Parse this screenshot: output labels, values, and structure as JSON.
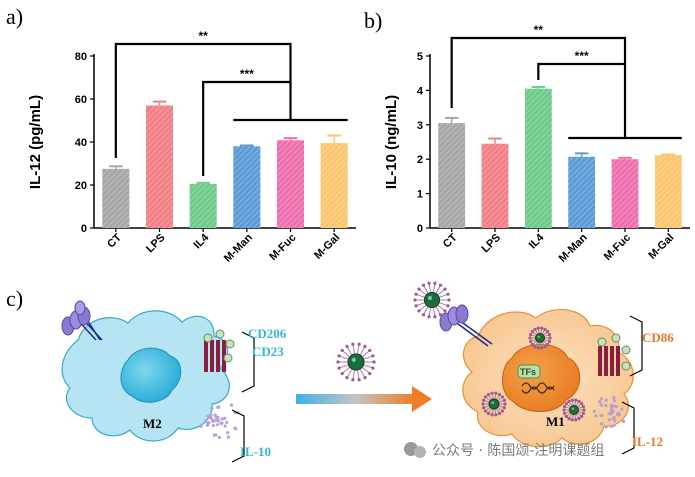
{
  "panels": {
    "a": "a)",
    "b": "b)",
    "c": "c)"
  },
  "chart_data": [
    {
      "type": "bar",
      "title": "",
      "xlabel": "",
      "ylabel": "IL-12 (pg/mL)",
      "ylim": [
        0,
        80
      ],
      "yticks": [
        0,
        20,
        40,
        60,
        80
      ],
      "categories": [
        "CT",
        "LPS",
        "IL4",
        "M-Man",
        "M-Fuc",
        "M-Gal"
      ],
      "values": [
        27.5,
        57,
        20.5,
        38,
        40.8,
        39.5
      ],
      "errors": [
        1.2,
        1.8,
        0.5,
        0.4,
        1,
        3.5
      ],
      "colors": [
        "#a6a6a8",
        "#f27f85",
        "#6ecb8a",
        "#5b9bd8",
        "#ee6fae",
        "#fcc66f"
      ],
      "significance": [
        {
          "label": "**",
          "from": "CT",
          "to": "M-Fuc"
        },
        {
          "label": "***",
          "from": "IL4",
          "to": "M-Fuc"
        }
      ]
    },
    {
      "type": "bar",
      "title": "",
      "xlabel": "",
      "ylabel": "IL-10 (ng/mL)",
      "ylim": [
        0,
        5
      ],
      "yticks": [
        0,
        1,
        2,
        3,
        4,
        5
      ],
      "categories": [
        "CT",
        "LPS",
        "IL4",
        "M-Man",
        "M-Fuc",
        "M-Gal"
      ],
      "values": [
        3.05,
        2.45,
        4.05,
        2.07,
        2.0,
        2.12
      ],
      "errors": [
        0.15,
        0.15,
        0.05,
        0.1,
        0.04,
        0.02
      ],
      "colors": [
        "#a6a6a8",
        "#f27f85",
        "#6ecb8a",
        "#5b9bd8",
        "#ee6fae",
        "#fcc66f"
      ],
      "significance": [
        {
          "label": "**",
          "from": "CT",
          "to": "M-Fuc"
        },
        {
          "label": "***",
          "from": "IL4",
          "to": "M-Fuc"
        }
      ]
    }
  ],
  "diagram": {
    "left_cell": "M2",
    "right_cell": "M1",
    "left_markers": "CD206\nCD23",
    "left_marker_1": "CD206",
    "left_marker_2": "CD23",
    "left_secreted": "IL-10",
    "right_marker": "CD86",
    "right_secreted": "IL-12",
    "nucleus_label": "TFs",
    "colors": {
      "m2_cyan": "#35b5d8",
      "m1_orange": "#e8782a"
    }
  },
  "watermark": "公众号 · 陈国颂-注明课题组"
}
